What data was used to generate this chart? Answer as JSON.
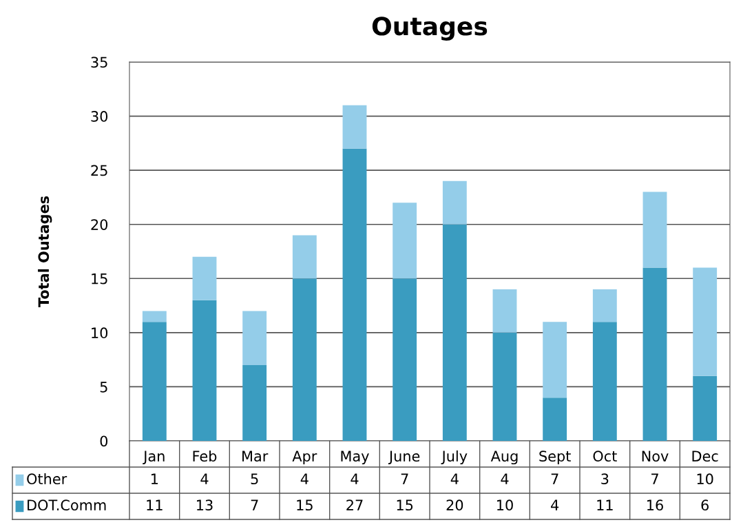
{
  "chart_data": {
    "type": "bar",
    "title": "Outages",
    "ylabel": "Total Outages",
    "stacked": true,
    "categories": [
      "Jan",
      "Feb",
      "Mar",
      "Apr",
      "May",
      "June",
      "July",
      "Aug",
      "Sept",
      "Oct",
      "Nov",
      "Dec"
    ],
    "series": [
      {
        "name": "DOT.Comm",
        "color": "#3a9cc0",
        "values": [
          11,
          13,
          7,
          15,
          27,
          15,
          20,
          10,
          4,
          11,
          16,
          6
        ]
      },
      {
        "name": "Other",
        "color": "#94cde9",
        "values": [
          1,
          4,
          5,
          4,
          4,
          7,
          4,
          4,
          7,
          3,
          7,
          10
        ]
      }
    ],
    "ylim": [
      0,
      35
    ],
    "yticks": [
      0,
      5,
      10,
      15,
      20,
      25,
      30,
      35
    ],
    "grid": "y",
    "data_labels": true,
    "legend": "bottom"
  }
}
